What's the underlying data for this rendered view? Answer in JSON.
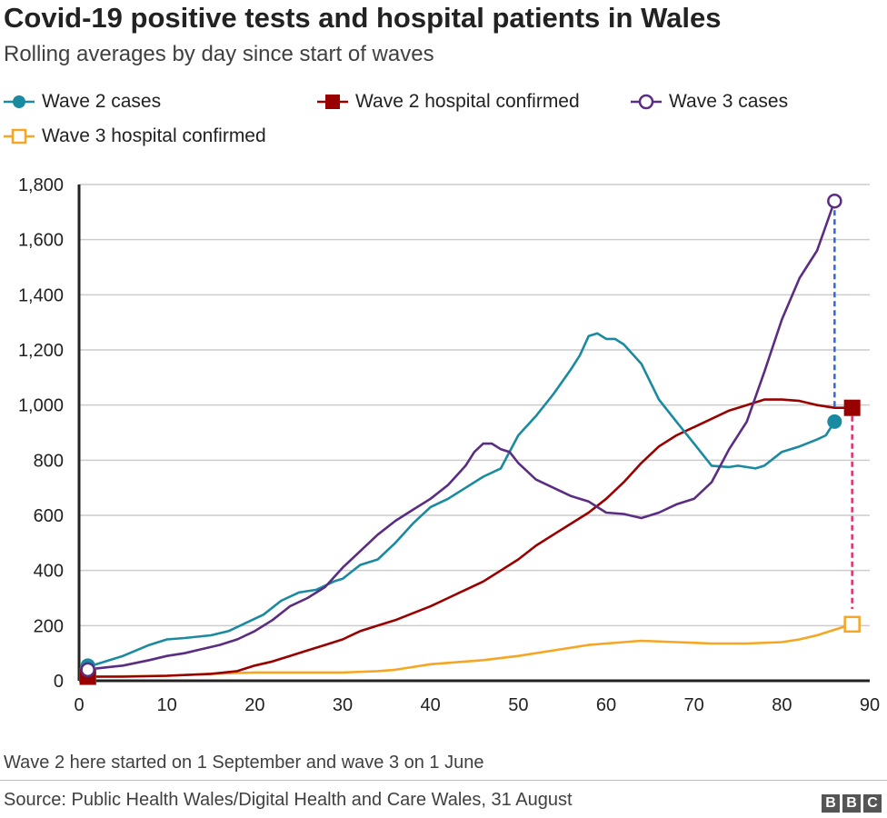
{
  "chart_data": {
    "type": "line",
    "title": "Covid-19 positive tests and hospital patients in Wales",
    "subtitle": "Rolling averages by day since start of waves",
    "xlim": [
      0,
      90
    ],
    "ylim": [
      0,
      1800
    ],
    "x_ticks": [
      0,
      10,
      20,
      30,
      40,
      50,
      60,
      70,
      80,
      90
    ],
    "y_ticks": [
      0,
      200,
      400,
      600,
      800,
      1000,
      1200,
      1400,
      1600,
      1800
    ],
    "y_tick_labels": [
      "0",
      "200",
      "400",
      "600",
      "800",
      "1,000",
      "1,200",
      "1,400",
      "1,600",
      "1,800"
    ],
    "grid": "horizontal",
    "legend_placement": "top",
    "series": [
      {
        "name": "Wave 2 cases",
        "color": "#1a8aa0",
        "marker": "filled-circle",
        "points": [
          [
            1,
            55
          ],
          [
            2,
            60
          ],
          [
            5,
            90
          ],
          [
            8,
            130
          ],
          [
            10,
            150
          ],
          [
            12,
            155
          ],
          [
            15,
            165
          ],
          [
            17,
            180
          ],
          [
            19,
            210
          ],
          [
            21,
            240
          ],
          [
            23,
            290
          ],
          [
            25,
            320
          ],
          [
            27,
            330
          ],
          [
            29,
            360
          ],
          [
            30,
            370
          ],
          [
            32,
            420
          ],
          [
            34,
            440
          ],
          [
            36,
            500
          ],
          [
            38,
            570
          ],
          [
            40,
            630
          ],
          [
            42,
            660
          ],
          [
            44,
            700
          ],
          [
            46,
            740
          ],
          [
            48,
            770
          ],
          [
            50,
            890
          ],
          [
            52,
            960
          ],
          [
            54,
            1040
          ],
          [
            56,
            1130
          ],
          [
            57,
            1180
          ],
          [
            58,
            1250
          ],
          [
            59,
            1260
          ],
          [
            60,
            1240
          ],
          [
            61,
            1240
          ],
          [
            62,
            1220
          ],
          [
            64,
            1150
          ],
          [
            66,
            1020
          ],
          [
            68,
            940
          ],
          [
            70,
            860
          ],
          [
            72,
            780
          ],
          [
            74,
            775
          ],
          [
            75,
            780
          ],
          [
            77,
            770
          ],
          [
            78,
            780
          ],
          [
            80,
            830
          ],
          [
            82,
            850
          ],
          [
            84,
            875
          ],
          [
            85,
            890
          ],
          [
            86,
            940
          ]
        ]
      },
      {
        "name": "Wave 2 hospital confirmed",
        "color": "#990000",
        "marker": "filled-square",
        "points": [
          [
            1,
            15
          ],
          [
            5,
            15
          ],
          [
            10,
            18
          ],
          [
            15,
            25
          ],
          [
            18,
            35
          ],
          [
            20,
            55
          ],
          [
            22,
            70
          ],
          [
            24,
            90
          ],
          [
            26,
            110
          ],
          [
            28,
            130
          ],
          [
            30,
            150
          ],
          [
            32,
            180
          ],
          [
            34,
            200
          ],
          [
            36,
            220
          ],
          [
            38,
            245
          ],
          [
            40,
            270
          ],
          [
            42,
            300
          ],
          [
            44,
            330
          ],
          [
            46,
            360
          ],
          [
            48,
            400
          ],
          [
            50,
            440
          ],
          [
            52,
            490
          ],
          [
            54,
            530
          ],
          [
            56,
            570
          ],
          [
            58,
            610
          ],
          [
            60,
            660
          ],
          [
            62,
            720
          ],
          [
            64,
            790
          ],
          [
            66,
            850
          ],
          [
            68,
            890
          ],
          [
            70,
            920
          ],
          [
            72,
            950
          ],
          [
            74,
            980
          ],
          [
            76,
            1000
          ],
          [
            78,
            1020
          ],
          [
            80,
            1020
          ],
          [
            82,
            1015
          ],
          [
            84,
            1000
          ],
          [
            86,
            990
          ],
          [
            88,
            990
          ]
        ]
      },
      {
        "name": "Wave 3 cases",
        "color": "#5a2d82",
        "marker": "open-circle",
        "points": [
          [
            1,
            40
          ],
          [
            2,
            45
          ],
          [
            5,
            55
          ],
          [
            8,
            75
          ],
          [
            10,
            90
          ],
          [
            12,
            100
          ],
          [
            14,
            115
          ],
          [
            16,
            130
          ],
          [
            18,
            150
          ],
          [
            20,
            180
          ],
          [
            22,
            220
          ],
          [
            24,
            270
          ],
          [
            26,
            300
          ],
          [
            28,
            340
          ],
          [
            30,
            410
          ],
          [
            32,
            470
          ],
          [
            34,
            530
          ],
          [
            36,
            580
          ],
          [
            38,
            620
          ],
          [
            40,
            660
          ],
          [
            42,
            710
          ],
          [
            44,
            780
          ],
          [
            45,
            830
          ],
          [
            46,
            860
          ],
          [
            47,
            860
          ],
          [
            48,
            840
          ],
          [
            49,
            830
          ],
          [
            50,
            790
          ],
          [
            52,
            730
          ],
          [
            54,
            700
          ],
          [
            56,
            670
          ],
          [
            58,
            650
          ],
          [
            60,
            610
          ],
          [
            62,
            605
          ],
          [
            64,
            590
          ],
          [
            66,
            610
          ],
          [
            68,
            640
          ],
          [
            70,
            660
          ],
          [
            72,
            720
          ],
          [
            74,
            840
          ],
          [
            76,
            940
          ],
          [
            78,
            1120
          ],
          [
            80,
            1310
          ],
          [
            82,
            1460
          ],
          [
            83,
            1510
          ],
          [
            84,
            1560
          ],
          [
            85,
            1650
          ],
          [
            86,
            1740
          ]
        ]
      },
      {
        "name": "Wave 3 hospital confirmed",
        "color": "#f5a623",
        "marker": "open-square",
        "points": [
          [
            1,
            15
          ],
          [
            10,
            18
          ],
          [
            15,
            25
          ],
          [
            20,
            30
          ],
          [
            30,
            30
          ],
          [
            34,
            35
          ],
          [
            36,
            40
          ],
          [
            40,
            60
          ],
          [
            42,
            65
          ],
          [
            46,
            75
          ],
          [
            50,
            90
          ],
          [
            54,
            110
          ],
          [
            58,
            130
          ],
          [
            62,
            140
          ],
          [
            64,
            145
          ],
          [
            68,
            140
          ],
          [
            72,
            135
          ],
          [
            76,
            135
          ],
          [
            80,
            140
          ],
          [
            82,
            150
          ],
          [
            84,
            165
          ],
          [
            86,
            185
          ],
          [
            88,
            205
          ]
        ]
      }
    ],
    "annotations": [
      {
        "type": "dashed-line",
        "color": "#3366dd",
        "x": 86,
        "y_from": 1740,
        "y_to": 990
      },
      {
        "type": "dashed-line",
        "color": "#e0306a",
        "x": 88,
        "y_from": 960,
        "y_to": 260
      }
    ]
  },
  "footer": {
    "note": "Wave 2 here started on 1 September and wave 3 on 1 June",
    "source": "Source: Public Health Wales/Digital Health and Care Wales, 31 August",
    "logo": "BBC"
  }
}
